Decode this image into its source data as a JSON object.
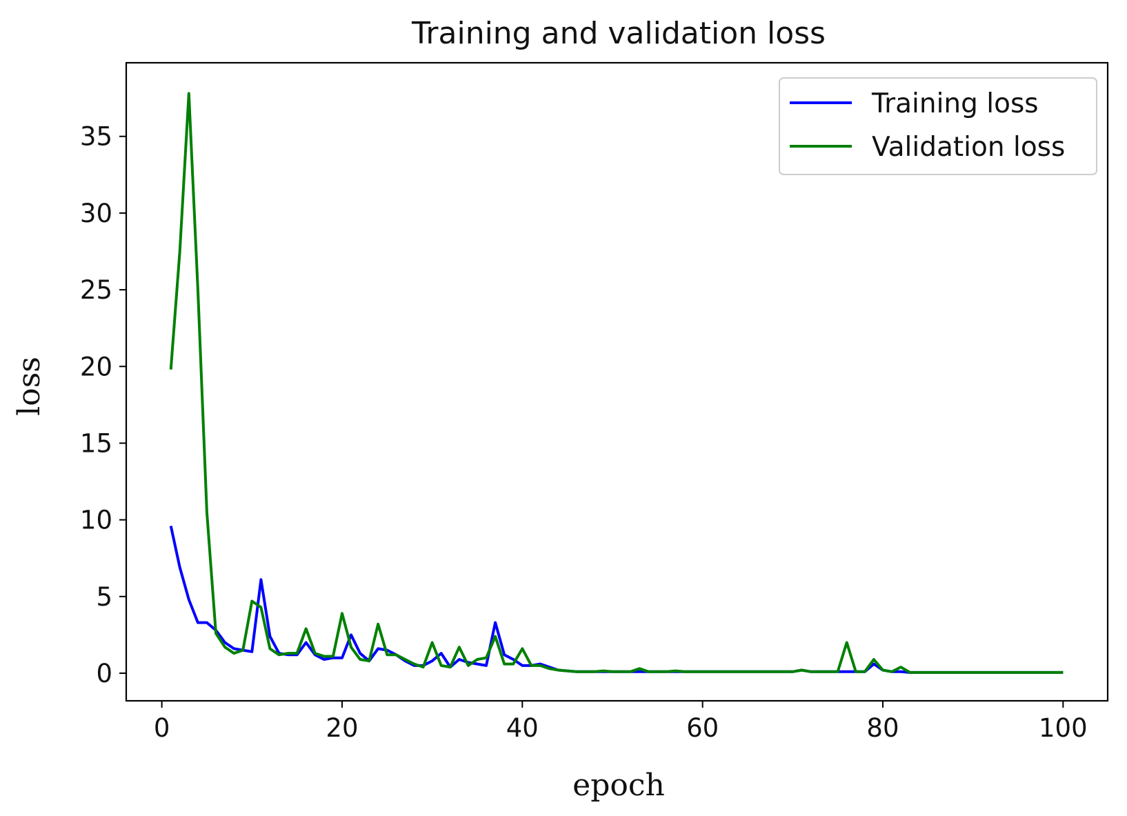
{
  "chart_data": {
    "type": "line",
    "title": "Training and validation loss",
    "xlabel": "epoch",
    "ylabel": "loss",
    "xlim": [
      -3.95,
      104.95
    ],
    "ylim": [
      -1.8,
      39.8
    ],
    "xticks": [
      0,
      20,
      40,
      60,
      80,
      100
    ],
    "yticks": [
      0,
      5,
      10,
      15,
      20,
      25,
      30,
      35
    ],
    "legend_location": "top-right",
    "grid": false,
    "series": [
      {
        "name": "Training loss",
        "color": "#0000ff",
        "x": [
          1,
          2,
          3,
          4,
          5,
          6,
          7,
          8,
          9,
          10,
          11,
          12,
          13,
          14,
          15,
          16,
          17,
          18,
          19,
          20,
          21,
          22,
          23,
          24,
          25,
          26,
          27,
          28,
          29,
          30,
          31,
          32,
          33,
          34,
          35,
          36,
          37,
          38,
          39,
          40,
          41,
          42,
          43,
          44,
          45,
          46,
          47,
          48,
          49,
          50,
          51,
          52,
          53,
          54,
          55,
          56,
          57,
          58,
          59,
          60,
          61,
          62,
          63,
          64,
          65,
          66,
          67,
          68,
          69,
          70,
          71,
          72,
          73,
          74,
          75,
          76,
          77,
          78,
          79,
          80,
          81,
          82,
          83,
          84,
          85,
          86,
          87,
          88,
          89,
          90,
          91,
          92,
          93,
          94,
          95,
          96,
          97,
          98,
          99,
          100
        ],
        "values": [
          9.6,
          6.9,
          4.8,
          3.3,
          3.3,
          2.8,
          2.0,
          1.6,
          1.5,
          1.4,
          6.1,
          2.4,
          1.3,
          1.2,
          1.2,
          2.0,
          1.2,
          0.9,
          1.0,
          1.0,
          2.5,
          1.3,
          0.8,
          1.6,
          1.5,
          1.2,
          0.8,
          0.5,
          0.5,
          0.8,
          1.3,
          0.4,
          0.9,
          0.7,
          0.6,
          0.5,
          3.3,
          1.2,
          0.9,
          0.5,
          0.5,
          0.6,
          0.4,
          0.2,
          0.15,
          0.1,
          0.1,
          0.1,
          0.1,
          0.1,
          0.1,
          0.1,
          0.1,
          0.1,
          0.1,
          0.1,
          0.1,
          0.1,
          0.1,
          0.1,
          0.1,
          0.1,
          0.1,
          0.1,
          0.1,
          0.1,
          0.1,
          0.1,
          0.1,
          0.1,
          0.2,
          0.1,
          0.1,
          0.1,
          0.1,
          0.1,
          0.1,
          0.1,
          0.6,
          0.2,
          0.1,
          0.1,
          0.05,
          0.05,
          0.05,
          0.05,
          0.05,
          0.05,
          0.05,
          0.05,
          0.05,
          0.05,
          0.05,
          0.05,
          0.05,
          0.05,
          0.05,
          0.05,
          0.05,
          0.05
        ]
      },
      {
        "name": "Validation loss",
        "color": "#008000",
        "x": [
          1,
          2,
          3,
          4,
          5,
          6,
          7,
          8,
          9,
          10,
          11,
          12,
          13,
          14,
          15,
          16,
          17,
          18,
          19,
          20,
          21,
          22,
          23,
          24,
          25,
          26,
          27,
          28,
          29,
          30,
          31,
          32,
          33,
          34,
          35,
          36,
          37,
          38,
          39,
          40,
          41,
          42,
          43,
          44,
          45,
          46,
          47,
          48,
          49,
          50,
          51,
          52,
          53,
          54,
          55,
          56,
          57,
          58,
          59,
          60,
          61,
          62,
          63,
          64,
          65,
          66,
          67,
          68,
          69,
          70,
          71,
          72,
          73,
          74,
          75,
          76,
          77,
          78,
          79,
          80,
          81,
          82,
          83,
          84,
          85,
          86,
          87,
          88,
          89,
          90,
          91,
          92,
          93,
          94,
          95,
          96,
          97,
          98,
          99,
          100
        ],
        "values": [
          19.8,
          27.5,
          37.8,
          25.0,
          10.5,
          2.6,
          1.7,
          1.3,
          1.5,
          4.7,
          4.3,
          1.6,
          1.2,
          1.3,
          1.3,
          2.9,
          1.3,
          1.1,
          1.1,
          3.9,
          1.7,
          0.9,
          0.8,
          3.2,
          1.2,
          1.2,
          0.9,
          0.6,
          0.4,
          2.0,
          0.5,
          0.4,
          1.7,
          0.5,
          0.9,
          1.0,
          2.4,
          0.6,
          0.6,
          1.6,
          0.5,
          0.5,
          0.3,
          0.2,
          0.15,
          0.1,
          0.1,
          0.1,
          0.15,
          0.1,
          0.1,
          0.1,
          0.3,
          0.1,
          0.1,
          0.1,
          0.15,
          0.1,
          0.1,
          0.1,
          0.1,
          0.1,
          0.1,
          0.1,
          0.1,
          0.1,
          0.1,
          0.1,
          0.1,
          0.1,
          0.2,
          0.1,
          0.1,
          0.1,
          0.1,
          2.0,
          0.1,
          0.1,
          0.9,
          0.2,
          0.1,
          0.4,
          0.05,
          0.05,
          0.05,
          0.05,
          0.05,
          0.05,
          0.05,
          0.05,
          0.05,
          0.05,
          0.05,
          0.05,
          0.05,
          0.05,
          0.05,
          0.05,
          0.05,
          0.05
        ]
      }
    ]
  }
}
